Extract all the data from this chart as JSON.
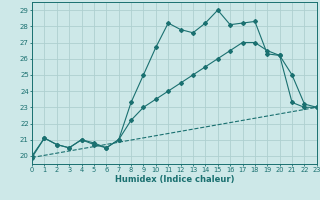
{
  "xlabel": "Humidex (Indice chaleur)",
  "bg_color": "#cde8e8",
  "grid_color": "#aed0d0",
  "line_color": "#1a7070",
  "xlim": [
    0,
    23
  ],
  "ylim": [
    19.5,
    29.5
  ],
  "xticks": [
    0,
    1,
    2,
    3,
    4,
    5,
    6,
    7,
    8,
    9,
    10,
    11,
    12,
    13,
    14,
    15,
    16,
    17,
    18,
    19,
    20,
    21,
    22,
    23
  ],
  "yticks": [
    20,
    21,
    22,
    23,
    24,
    25,
    26,
    27,
    28,
    29
  ],
  "line1_x": [
    0,
    1,
    2,
    3,
    4,
    5,
    6,
    7,
    8,
    9,
    10,
    11,
    12,
    13,
    14,
    15,
    16,
    17,
    18,
    19,
    20,
    21,
    22,
    23
  ],
  "line1_y": [
    19.9,
    21.1,
    20.7,
    20.5,
    21.0,
    20.7,
    20.5,
    21.0,
    23.3,
    25.0,
    26.7,
    28.2,
    27.8,
    27.6,
    28.2,
    29.0,
    28.1,
    28.2,
    28.3,
    26.3,
    26.2,
    23.3,
    23.0,
    23.0
  ],
  "line2_x": [
    0,
    1,
    2,
    3,
    4,
    5,
    6,
    7,
    8,
    9,
    10,
    11,
    12,
    13,
    14,
    15,
    16,
    17,
    18,
    19,
    20,
    21,
    22,
    23
  ],
  "line2_y": [
    20.0,
    21.1,
    20.7,
    20.5,
    21.0,
    20.8,
    20.5,
    21.0,
    22.2,
    23.0,
    23.5,
    24.0,
    24.5,
    25.0,
    25.5,
    26.0,
    26.5,
    27.0,
    27.0,
    26.5,
    26.2,
    25.0,
    23.2,
    23.0
  ],
  "line3_x": [
    0,
    23
  ],
  "line3_y": [
    19.9,
    23.0
  ]
}
